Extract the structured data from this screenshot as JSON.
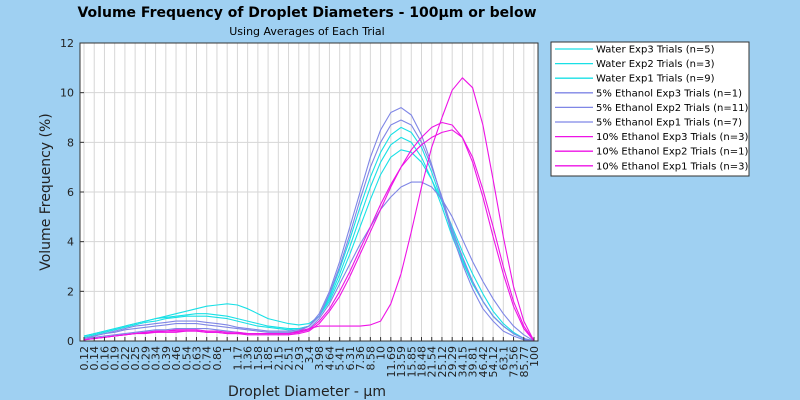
{
  "chart_data": {
    "type": "line",
    "title": "Volume Frequency of Droplet Diameters - 100μm or below",
    "subtitle": "Using Averages of Each Trial",
    "xlabel": "Droplet Diameter - μm",
    "ylabel": "Volume Frequency (%)",
    "ylim": [
      0,
      12
    ],
    "y_ticks": [
      "0",
      "2",
      "4",
      "6",
      "8",
      "10",
      "12"
    ],
    "x_ticks": [
      "0.12",
      "0.14",
      "0.16",
      "0.19",
      "0.22",
      "0.25",
      "0.29",
      "0.34",
      "0.39",
      "0.46",
      "0.54",
      "0.63",
      "0.74",
      "0.86",
      "1",
      "1.17",
      "1.36",
      "1.58",
      "1.85",
      "2.15",
      "2.51",
      "2.93",
      "3.4",
      "3.98",
      "4.64",
      "5.41",
      "6.31",
      "7.36",
      "8.58",
      "10",
      "11.69",
      "13.59",
      "15.85",
      "18.48",
      "21.54",
      "25.12",
      "29.29",
      "34.15",
      "39.81",
      "46.42",
      "54.12",
      "63.1",
      "73.56",
      "85.77",
      "100"
    ],
    "grid": true,
    "legend_position": "outside-right",
    "colors": {
      "background": "#9fd0f2",
      "plot_bg": "#ffffff",
      "water": "#19e0e6",
      "ethanol5": "#7f86e6",
      "ethanol10": "#ee13e6"
    },
    "series": [
      {
        "name": "Water Exp3 Trials (n=5)",
        "color": "#19e0e6",
        "values": [
          0.2,
          0.3,
          0.4,
          0.5,
          0.6,
          0.7,
          0.8,
          0.9,
          0.95,
          1.0,
          1.05,
          1.1,
          1.1,
          1.05,
          1.0,
          0.9,
          0.8,
          0.7,
          0.6,
          0.55,
          0.5,
          0.5,
          0.6,
          1.0,
          1.7,
          2.7,
          3.8,
          5.0,
          6.2,
          7.2,
          7.9,
          8.2,
          8.0,
          7.4,
          6.5,
          5.4,
          4.2,
          3.2,
          2.3,
          1.6,
          1.0,
          0.6,
          0.3,
          0.1,
          0.0
        ]
      },
      {
        "name": "Water Exp2 Trials (n=3)",
        "color": "#19e0e6",
        "values": [
          0.2,
          0.3,
          0.4,
          0.5,
          0.6,
          0.7,
          0.8,
          0.9,
          1.0,
          1.1,
          1.2,
          1.3,
          1.4,
          1.45,
          1.5,
          1.45,
          1.3,
          1.1,
          0.9,
          0.8,
          0.7,
          0.65,
          0.7,
          1.0,
          1.6,
          2.5,
          3.5,
          4.6,
          5.7,
          6.7,
          7.4,
          7.7,
          7.6,
          7.2,
          6.5,
          5.6,
          4.6,
          3.6,
          2.7,
          1.9,
          1.2,
          0.7,
          0.35,
          0.1,
          0.0
        ]
      },
      {
        "name": "Water Exp1 Trials (n=9)",
        "color": "#19e0e6",
        "values": [
          0.15,
          0.25,
          0.35,
          0.45,
          0.55,
          0.65,
          0.75,
          0.8,
          0.9,
          0.95,
          1.0,
          1.0,
          1.0,
          0.95,
          0.9,
          0.8,
          0.7,
          0.6,
          0.55,
          0.5,
          0.45,
          0.5,
          0.6,
          1.0,
          1.8,
          2.9,
          4.1,
          5.4,
          6.6,
          7.6,
          8.3,
          8.6,
          8.4,
          7.8,
          6.8,
          5.6,
          4.4,
          3.3,
          2.4,
          1.6,
          1.0,
          0.6,
          0.3,
          0.1,
          0.0
        ]
      },
      {
        "name": "5% Ethanol Exp3 Trials (n=1)",
        "color": "#7f86e6",
        "values": [
          0.1,
          0.15,
          0.2,
          0.25,
          0.3,
          0.35,
          0.4,
          0.45,
          0.45,
          0.5,
          0.5,
          0.5,
          0.5,
          0.45,
          0.4,
          0.35,
          0.3,
          0.3,
          0.3,
          0.3,
          0.3,
          0.35,
          0.5,
          0.9,
          1.5,
          2.3,
          3.1,
          3.9,
          4.6,
          5.3,
          5.8,
          6.2,
          6.4,
          6.4,
          6.2,
          5.7,
          5.0,
          4.1,
          3.2,
          2.4,
          1.7,
          1.1,
          0.6,
          0.25,
          0.0
        ]
      },
      {
        "name": "5% Ethanol Exp2 Trials (n=11)",
        "color": "#7f86e6",
        "values": [
          0.1,
          0.2,
          0.3,
          0.4,
          0.5,
          0.6,
          0.65,
          0.7,
          0.75,
          0.8,
          0.8,
          0.8,
          0.75,
          0.7,
          0.65,
          0.55,
          0.5,
          0.45,
          0.4,
          0.4,
          0.4,
          0.45,
          0.6,
          1.1,
          2.0,
          3.2,
          4.6,
          6.0,
          7.4,
          8.5,
          9.2,
          9.4,
          9.1,
          8.3,
          7.1,
          5.7,
          4.3,
          3.1,
          2.1,
          1.3,
          0.8,
          0.4,
          0.2,
          0.05,
          0.0
        ]
      },
      {
        "name": "5% Ethanol Exp1 Trials (n=7)",
        "color": "#7f86e6",
        "values": [
          0.1,
          0.2,
          0.3,
          0.35,
          0.45,
          0.5,
          0.55,
          0.6,
          0.65,
          0.7,
          0.7,
          0.7,
          0.65,
          0.6,
          0.55,
          0.5,
          0.45,
          0.4,
          0.35,
          0.35,
          0.35,
          0.4,
          0.6,
          1.0,
          1.9,
          3.0,
          4.3,
          5.7,
          7.0,
          8.0,
          8.7,
          8.9,
          8.7,
          8.0,
          7.0,
          5.8,
          4.5,
          3.4,
          2.4,
          1.6,
          1.0,
          0.6,
          0.3,
          0.1,
          0.0
        ]
      },
      {
        "name": "10% Ethanol Exp3 Trials (n=3)",
        "color": "#ee13e6",
        "values": [
          0.05,
          0.1,
          0.15,
          0.2,
          0.25,
          0.3,
          0.35,
          0.35,
          0.4,
          0.4,
          0.4,
          0.4,
          0.35,
          0.35,
          0.3,
          0.3,
          0.25,
          0.25,
          0.25,
          0.25,
          0.25,
          0.3,
          0.4,
          0.7,
          1.2,
          1.8,
          2.6,
          3.5,
          4.4,
          5.3,
          6.2,
          7.0,
          7.7,
          8.2,
          8.6,
          8.8,
          8.7,
          8.2,
          7.2,
          5.8,
          4.2,
          2.7,
          1.4,
          0.5,
          0.0
        ]
      },
      {
        "name": "10% Ethanol Exp2 Trials (n=1)",
        "color": "#ee13e6",
        "values": [
          0.05,
          0.1,
          0.15,
          0.2,
          0.25,
          0.3,
          0.3,
          0.35,
          0.35,
          0.35,
          0.4,
          0.4,
          0.35,
          0.35,
          0.3,
          0.3,
          0.3,
          0.3,
          0.3,
          0.3,
          0.3,
          0.4,
          0.5,
          0.6,
          0.6,
          0.6,
          0.6,
          0.6,
          0.65,
          0.8,
          1.5,
          2.7,
          4.4,
          6.2,
          7.8,
          9.0,
          10.1,
          10.6,
          10.2,
          8.7,
          6.5,
          4.2,
          2.2,
          0.8,
          0.0
        ]
      },
      {
        "name": "10% Ethanol Exp1 Trials (n=3)",
        "color": "#ee13e6",
        "values": [
          0.05,
          0.1,
          0.15,
          0.2,
          0.25,
          0.3,
          0.35,
          0.4,
          0.4,
          0.45,
          0.45,
          0.45,
          0.4,
          0.4,
          0.35,
          0.35,
          0.3,
          0.3,
          0.3,
          0.3,
          0.3,
          0.35,
          0.45,
          0.8,
          1.3,
          2.0,
          2.8,
          3.7,
          4.6,
          5.5,
          6.3,
          7.0,
          7.5,
          7.9,
          8.2,
          8.4,
          8.5,
          8.2,
          7.4,
          6.1,
          4.6,
          3.0,
          1.6,
          0.6,
          0.0
        ]
      }
    ]
  }
}
